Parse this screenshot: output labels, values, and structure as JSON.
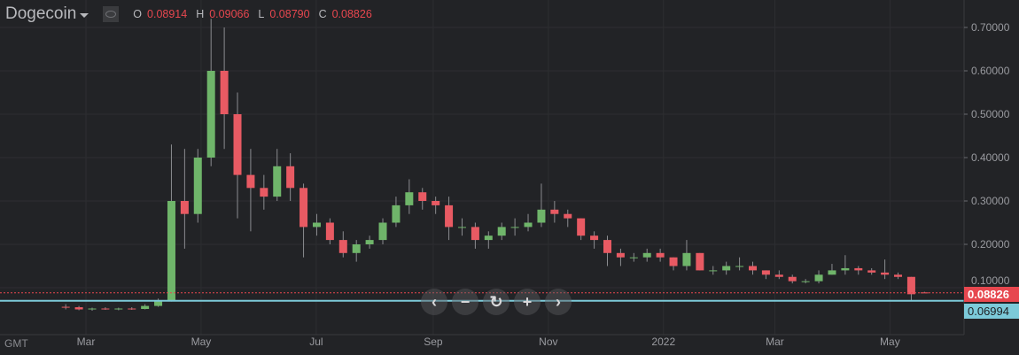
{
  "header": {
    "symbol": "Dogecoin",
    "eye_icon": "eye-icon",
    "ohlc": {
      "o_label": "O",
      "o": "0.08914",
      "h_label": "H",
      "h": "0.09066",
      "l_label": "L",
      "l": "0.08790",
      "c_label": "C",
      "c": "0.08826"
    }
  },
  "timezone": "GMT",
  "nav_buttons": [
    {
      "icon": "chevron-left-icon",
      "label": "‹"
    },
    {
      "icon": "zoom-out-icon",
      "label": "−"
    },
    {
      "icon": "reset-icon",
      "label": "↻"
    },
    {
      "icon": "zoom-in-icon",
      "label": "+"
    },
    {
      "icon": "chevron-right-icon",
      "label": "›"
    }
  ],
  "colors": {
    "background": "#222326",
    "grid": "#2d2e31",
    "up": "#6fb56a",
    "down": "#e85a63",
    "last_price": "#e7474f",
    "crosshair_line": "#7ccad9"
  },
  "price_labels": {
    "last": "0.08826",
    "line": "0.06994"
  },
  "chart_data": {
    "type": "candlestick",
    "ylim": [
      0,
      0.75
    ],
    "y_ticks": [
      "0.10000",
      "0.20000",
      "0.30000",
      "0.40000",
      "0.50000",
      "0.60000",
      "0.70000"
    ],
    "y_tick_values": [
      0.1,
      0.2,
      0.3,
      0.4,
      0.5,
      0.6,
      0.7
    ],
    "x_ticks": [
      {
        "label": "Mar",
        "date": "2021-03-01"
      },
      {
        "label": "May",
        "date": "2021-05-01"
      },
      {
        "label": "Jul",
        "date": "2021-07-01"
      },
      {
        "label": "Sep",
        "date": "2021-09-01"
      },
      {
        "label": "Nov",
        "date": "2021-11-01"
      },
      {
        "label": "2022",
        "date": "2022-01-01"
      },
      {
        "label": "Mar",
        "date": "2022-03-01"
      },
      {
        "label": "May",
        "date": "2022-05-01"
      }
    ],
    "last_price": 0.08826,
    "horizontal_line": 0.06994,
    "grid": true,
    "candles_columns": [
      "date",
      "open",
      "high",
      "low",
      "close"
    ],
    "candles": [
      [
        "2021-02-15",
        0.056,
        0.062,
        0.05,
        0.055
      ],
      [
        "2021-02-22",
        0.055,
        0.058,
        0.048,
        0.05
      ],
      [
        "2021-03-01",
        0.05,
        0.054,
        0.047,
        0.052
      ],
      [
        "2021-03-08",
        0.052,
        0.055,
        0.049,
        0.05
      ],
      [
        "2021-03-15",
        0.05,
        0.054,
        0.048,
        0.052
      ],
      [
        "2021-03-22",
        0.052,
        0.055,
        0.049,
        0.051
      ],
      [
        "2021-03-29",
        0.051,
        0.062,
        0.05,
        0.058
      ],
      [
        "2021-04-05",
        0.058,
        0.075,
        0.056,
        0.07
      ],
      [
        "2021-04-12",
        0.07,
        0.43,
        0.068,
        0.3
      ],
      [
        "2021-04-19",
        0.3,
        0.42,
        0.19,
        0.27
      ],
      [
        "2021-04-26",
        0.27,
        0.42,
        0.25,
        0.4
      ],
      [
        "2021-05-03",
        0.4,
        0.72,
        0.38,
        0.6
      ],
      [
        "2021-05-10",
        0.6,
        0.7,
        0.42,
        0.5
      ],
      [
        "2021-05-17",
        0.5,
        0.55,
        0.26,
        0.36
      ],
      [
        "2021-05-24",
        0.36,
        0.42,
        0.23,
        0.33
      ],
      [
        "2021-05-31",
        0.33,
        0.36,
        0.28,
        0.31
      ],
      [
        "2021-06-07",
        0.31,
        0.42,
        0.3,
        0.38
      ],
      [
        "2021-06-14",
        0.38,
        0.41,
        0.3,
        0.33
      ],
      [
        "2021-06-21",
        0.33,
        0.34,
        0.17,
        0.24
      ],
      [
        "2021-06-28",
        0.24,
        0.27,
        0.22,
        0.25
      ],
      [
        "2021-07-05",
        0.25,
        0.26,
        0.2,
        0.21
      ],
      [
        "2021-07-12",
        0.21,
        0.23,
        0.17,
        0.18
      ],
      [
        "2021-07-19",
        0.18,
        0.21,
        0.16,
        0.2
      ],
      [
        "2021-07-26",
        0.2,
        0.22,
        0.19,
        0.21
      ],
      [
        "2021-08-02",
        0.21,
        0.26,
        0.2,
        0.25
      ],
      [
        "2021-08-09",
        0.25,
        0.31,
        0.24,
        0.29
      ],
      [
        "2021-08-16",
        0.29,
        0.35,
        0.27,
        0.32
      ],
      [
        "2021-08-23",
        0.32,
        0.33,
        0.28,
        0.3
      ],
      [
        "2021-08-30",
        0.3,
        0.31,
        0.27,
        0.29
      ],
      [
        "2021-09-06",
        0.29,
        0.31,
        0.21,
        0.24
      ],
      [
        "2021-09-13",
        0.24,
        0.26,
        0.22,
        0.24
      ],
      [
        "2021-09-20",
        0.24,
        0.25,
        0.19,
        0.21
      ],
      [
        "2021-09-27",
        0.21,
        0.23,
        0.19,
        0.22
      ],
      [
        "2021-10-04",
        0.22,
        0.25,
        0.21,
        0.24
      ],
      [
        "2021-10-11",
        0.24,
        0.26,
        0.22,
        0.24
      ],
      [
        "2021-10-18",
        0.24,
        0.27,
        0.23,
        0.25
      ],
      [
        "2021-10-25",
        0.25,
        0.34,
        0.24,
        0.28
      ],
      [
        "2021-11-01",
        0.28,
        0.3,
        0.25,
        0.27
      ],
      [
        "2021-11-08",
        0.27,
        0.28,
        0.24,
        0.26
      ],
      [
        "2021-11-15",
        0.26,
        0.26,
        0.21,
        0.22
      ],
      [
        "2021-11-22",
        0.22,
        0.23,
        0.19,
        0.21
      ],
      [
        "2021-11-29",
        0.21,
        0.22,
        0.15,
        0.18
      ],
      [
        "2021-12-06",
        0.18,
        0.19,
        0.15,
        0.17
      ],
      [
        "2021-12-13",
        0.17,
        0.18,
        0.16,
        0.17
      ],
      [
        "2021-12-20",
        0.17,
        0.19,
        0.16,
        0.18
      ],
      [
        "2021-12-27",
        0.18,
        0.19,
        0.16,
        0.17
      ],
      [
        "2022-01-03",
        0.17,
        0.17,
        0.14,
        0.15
      ],
      [
        "2022-01-10",
        0.15,
        0.21,
        0.14,
        0.18
      ],
      [
        "2022-01-17",
        0.18,
        0.18,
        0.14,
        0.14
      ],
      [
        "2022-01-24",
        0.14,
        0.15,
        0.13,
        0.14
      ],
      [
        "2022-01-31",
        0.14,
        0.16,
        0.13,
        0.15
      ],
      [
        "2022-02-07",
        0.15,
        0.17,
        0.14,
        0.15
      ],
      [
        "2022-02-14",
        0.15,
        0.16,
        0.13,
        0.14
      ],
      [
        "2022-02-21",
        0.14,
        0.14,
        0.12,
        0.13
      ],
      [
        "2022-02-28",
        0.13,
        0.14,
        0.12,
        0.125
      ],
      [
        "2022-03-07",
        0.125,
        0.13,
        0.11,
        0.115
      ],
      [
        "2022-03-14",
        0.115,
        0.12,
        0.11,
        0.115
      ],
      [
        "2022-03-21",
        0.115,
        0.14,
        0.11,
        0.13
      ],
      [
        "2022-03-28",
        0.13,
        0.155,
        0.13,
        0.14
      ],
      [
        "2022-04-04",
        0.14,
        0.175,
        0.13,
        0.145
      ],
      [
        "2022-04-11",
        0.145,
        0.15,
        0.13,
        0.14
      ],
      [
        "2022-04-18",
        0.14,
        0.145,
        0.13,
        0.135
      ],
      [
        "2022-04-25",
        0.135,
        0.165,
        0.12,
        0.13
      ],
      [
        "2022-05-02",
        0.13,
        0.135,
        0.12,
        0.125
      ],
      [
        "2022-05-09",
        0.125,
        0.125,
        0.07,
        0.085
      ],
      [
        "2022-05-16",
        0.08914,
        0.09066,
        0.0879,
        0.08826
      ]
    ]
  }
}
